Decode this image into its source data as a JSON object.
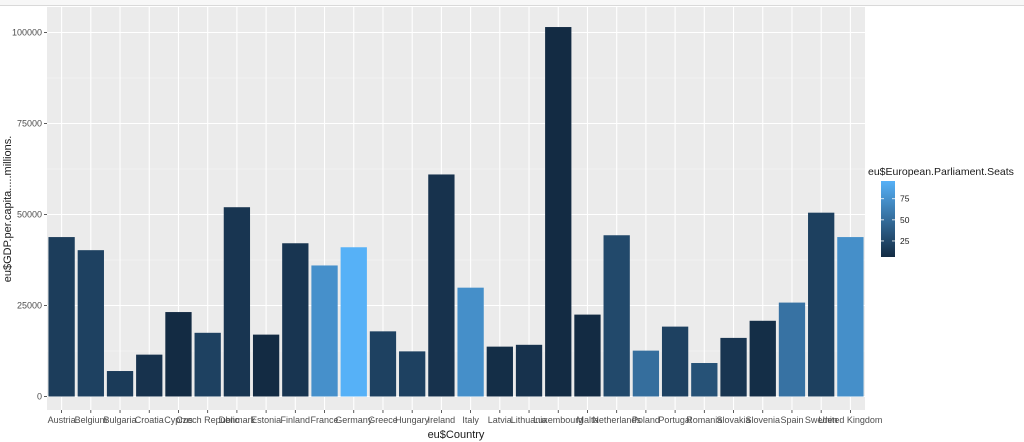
{
  "chart_data": {
    "type": "bar",
    "xlabel": "eu$Country",
    "ylabel": "eu$GDP.per.capita.....millions.",
    "ylim": [
      0,
      105000
    ],
    "yticks": [
      0,
      25000,
      50000,
      75000,
      100000
    ],
    "ytick_labels": [
      "0",
      "25000",
      "50000",
      "75000",
      "100000"
    ],
    "grid": true,
    "legend_position": "right",
    "color_scale": {
      "title": "eu$European.Parliament.Seats",
      "low_color": "#132b43",
      "high_color": "#56b1f7",
      "min": 6,
      "max": 96,
      "breaks": [
        25,
        50,
        75
      ],
      "break_labels": [
        "25",
        "50",
        "75"
      ]
    },
    "categories": [
      "Austria",
      "Belgium",
      "Bulgaria",
      "Croatia",
      "Cyprus",
      "Czech Republic",
      "Denmark",
      "Estonia",
      "Finland",
      "France",
      "Germany",
      "Greece",
      "Hungary",
      "Ireland",
      "Italy",
      "Latvia",
      "Lithuania",
      "Luxembourg",
      "Malta",
      "Netherlands",
      "Poland",
      "Portugal",
      "Romania",
      "Slovakia",
      "Slovenia",
      "Spain",
      "Sweden",
      "United Kingdom"
    ],
    "values": [
      43800,
      40200,
      7000,
      11500,
      23200,
      17500,
      52000,
      17000,
      42100,
      36000,
      41000,
      17900,
      12400,
      61000,
      29900,
      13700,
      14200,
      101500,
      22500,
      44300,
      12600,
      19200,
      9200,
      16100,
      20800,
      25800,
      50500,
      43800
    ],
    "color_values": [
      18,
      21,
      17,
      11,
      6,
      21,
      13,
      6,
      13,
      74,
      96,
      21,
      21,
      11,
      73,
      8,
      11,
      6,
      6,
      26,
      51,
      21,
      32,
      13,
      8,
      54,
      20,
      73
    ]
  }
}
